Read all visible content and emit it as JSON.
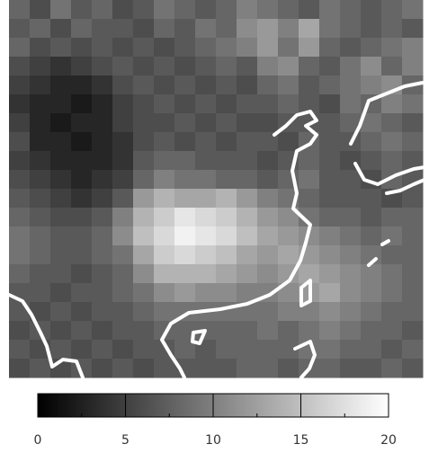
{
  "chart_data": {
    "type": "heatmap",
    "colormap": "gray",
    "z": [
      [
        8,
        6,
        9,
        7,
        8,
        6,
        7,
        9,
        8,
        7,
        8,
        10,
        9,
        8,
        7,
        9,
        8,
        7,
        8,
        9
      ],
      [
        7,
        8,
        6,
        8,
        7,
        7,
        6,
        8,
        7,
        9,
        8,
        11,
        12,
        10,
        13,
        9,
        8,
        7,
        8,
        7
      ],
      [
        8,
        6,
        7,
        6,
        7,
        6,
        7,
        6,
        7,
        8,
        9,
        10,
        12,
        9,
        12,
        8,
        7,
        8,
        9,
        10
      ],
      [
        6,
        5,
        4,
        5,
        6,
        7,
        6,
        7,
        6,
        7,
        8,
        7,
        10,
        11,
        8,
        7,
        9,
        11,
        8,
        10
      ],
      [
        5,
        4,
        3,
        3,
        4,
        6,
        7,
        6,
        7,
        6,
        7,
        6,
        8,
        9,
        7,
        8,
        9,
        10,
        11,
        8
      ],
      [
        4,
        3,
        3,
        2,
        3,
        5,
        6,
        7,
        6,
        7,
        6,
        7,
        7,
        8,
        7,
        6,
        9,
        8,
        10,
        9
      ],
      [
        5,
        3,
        2,
        3,
        3,
        5,
        6,
        6,
        7,
        6,
        7,
        6,
        6,
        7,
        7,
        7,
        8,
        9,
        8,
        7
      ],
      [
        6,
        3,
        3,
        2,
        3,
        4,
        6,
        7,
        6,
        7,
        6,
        7,
        7,
        6,
        8,
        7,
        7,
        8,
        9,
        8
      ],
      [
        5,
        4,
        3,
        3,
        3,
        4,
        7,
        8,
        8,
        7,
        7,
        7,
        6,
        7,
        8,
        7,
        6,
        7,
        8,
        7
      ],
      [
        6,
        5,
        4,
        3,
        4,
        5,
        8,
        10,
        9,
        9,
        8,
        8,
        7,
        8,
        9,
        7,
        7,
        6,
        8,
        7
      ],
      [
        7,
        6,
        5,
        4,
        5,
        7,
        12,
        14,
        13,
        13,
        14,
        12,
        10,
        9,
        8,
        7,
        7,
        7,
        6,
        7
      ],
      [
        8,
        7,
        6,
        6,
        7,
        10,
        14,
        16,
        18,
        17,
        16,
        14,
        12,
        11,
        9,
        8,
        8,
        7,
        8,
        8
      ],
      [
        9,
        8,
        7,
        7,
        8,
        11,
        15,
        17,
        19,
        18,
        17,
        15,
        13,
        12,
        11,
        10,
        9,
        8,
        9,
        8
      ],
      [
        9,
        8,
        7,
        7,
        8,
        9,
        13,
        16,
        17,
        16,
        15,
        13,
        12,
        13,
        12,
        11,
        10,
        9,
        8,
        8
      ],
      [
        8,
        7,
        7,
        6,
        7,
        8,
        11,
        14,
        14,
        14,
        13,
        12,
        11,
        12,
        13,
        12,
        11,
        10,
        9,
        8
      ],
      [
        7,
        7,
        6,
        7,
        7,
        8,
        9,
        11,
        12,
        11,
        11,
        10,
        10,
        11,
        12,
        13,
        11,
        10,
        9,
        8
      ],
      [
        7,
        6,
        7,
        6,
        7,
        7,
        8,
        9,
        9,
        9,
        9,
        9,
        9,
        10,
        10,
        11,
        10,
        9,
        8,
        8
      ],
      [
        6,
        7,
        6,
        7,
        6,
        7,
        7,
        8,
        8,
        8,
        8,
        8,
        9,
        8,
        9,
        10,
        9,
        8,
        8,
        7
      ],
      [
        7,
        6,
        7,
        6,
        7,
        6,
        7,
        7,
        8,
        7,
        8,
        8,
        8,
        8,
        9,
        9,
        8,
        8,
        7,
        8
      ],
      [
        6,
        7,
        6,
        7,
        6,
        7,
        6,
        7,
        7,
        7,
        7,
        8,
        8,
        7,
        8,
        8,
        7,
        7,
        8,
        7
      ]
    ],
    "clim": [
      0,
      20
    ],
    "cticks": [
      0,
      5,
      10,
      15,
      20
    ],
    "cminorticks": [
      2.5,
      7.5,
      12.5,
      17.5
    ]
  }
}
